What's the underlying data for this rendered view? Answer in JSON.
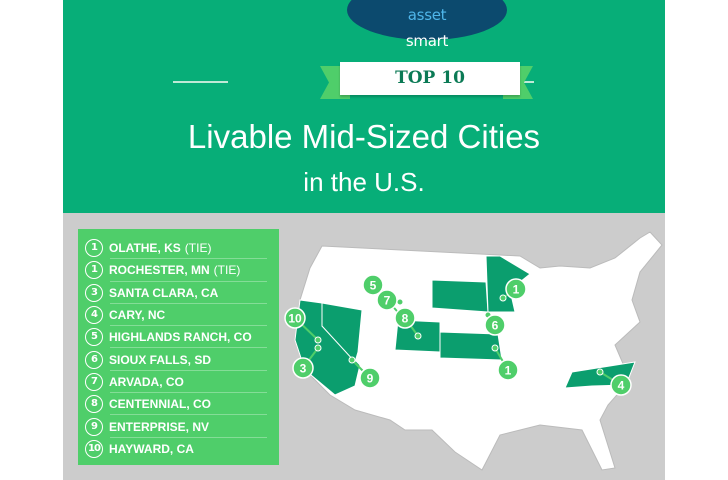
{
  "brand": {
    "logo_part1": "smart",
    "logo_part2": "asset"
  },
  "badge": "TOP 10",
  "title": "Livable Mid-Sized Cities",
  "subtitle": "in the U.S.",
  "colors": {
    "header": "#07ae78",
    "list": "#4fce6a",
    "highlight_state": "#0b9e6e",
    "logo": "#0c4a6e",
    "background": "#cccccc"
  },
  "rankings": [
    {
      "rank": "1",
      "city": "OLATHE, KS",
      "note": "(TIE)"
    },
    {
      "rank": "1",
      "city": "ROCHESTER, MN",
      "note": "(TIE)"
    },
    {
      "rank": "3",
      "city": "SANTA CLARA, CA",
      "note": ""
    },
    {
      "rank": "4",
      "city": "CARY, NC",
      "note": ""
    },
    {
      "rank": "5",
      "city": "HIGHLANDS RANCH, CO",
      "note": ""
    },
    {
      "rank": "6",
      "city": "SIOUX FALLS, SD",
      "note": ""
    },
    {
      "rank": "7",
      "city": "ARVADA, CO",
      "note": ""
    },
    {
      "rank": "8",
      "city": "CENTENNIAL, CO",
      "note": ""
    },
    {
      "rank": "9",
      "city": "ENTERPRISE, NV",
      "note": ""
    },
    {
      "rank": "10",
      "city": "HAYWARD, CA",
      "note": ""
    }
  ],
  "map": {
    "highlighted_states": [
      "CA",
      "NV",
      "CO",
      "KS",
      "SD",
      "MN",
      "NC"
    ],
    "markers": [
      "1",
      "6",
      "5",
      "7",
      "8",
      "10",
      "3",
      "9",
      "1",
      "4"
    ]
  }
}
